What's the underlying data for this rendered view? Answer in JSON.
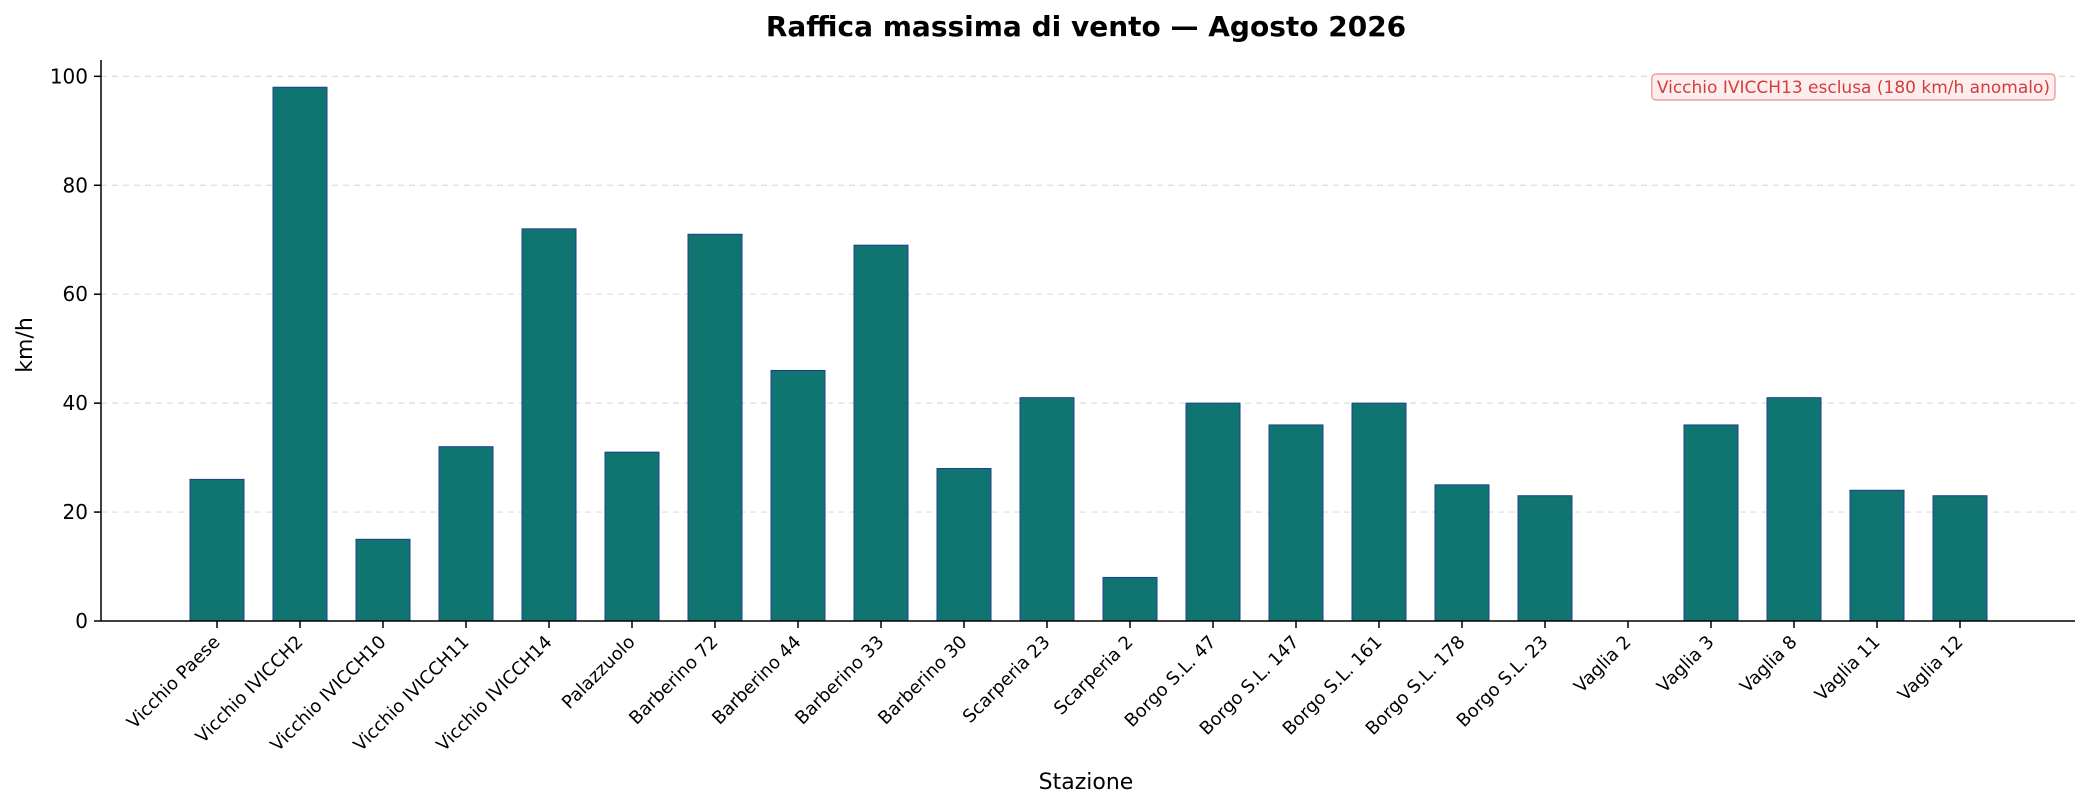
{
  "chart_data": {
    "type": "bar",
    "title": "Raffica massima di vento — Agosto 2026",
    "xlabel": "Stazione",
    "ylabel": "km/h",
    "ylim": [
      0,
      103
    ],
    "yticks": [
      0,
      20,
      40,
      60,
      80,
      100
    ],
    "grid": "horizontal dashed",
    "categories": [
      "Vicchio Paese",
      "Vicchio IVICCH2",
      "Vicchio IVICCH10",
      "Vicchio IVICCH11",
      "Vicchio IVICCH14",
      "Palazzuolo",
      "Barberino 72",
      "Barberino 44",
      "Barberino 33",
      "Barberino 30",
      "Scarperia 23",
      "Scarperia 2",
      "Borgo S.L. 47",
      "Borgo S.L. 147",
      "Borgo S.L. 161",
      "Borgo S.L. 178",
      "Borgo S.L. 23",
      "Vaglia 2",
      "Vaglia 3",
      "Vaglia 8",
      "Vaglia 11",
      "Vaglia 12"
    ],
    "values": [
      26,
      98,
      15,
      32,
      72,
      31,
      71,
      46,
      69,
      28,
      41,
      8,
      40,
      36,
      40,
      25,
      23,
      0,
      36,
      41,
      24,
      23
    ],
    "annotation": "Vicchio IVICCH13 esclusa (180 km/h anomalo)",
    "colors": {
      "bar_fill": "#107570",
      "bar_edge": "#1f3f8f",
      "grid": "#dddddd",
      "annotation_text": "#d43d3d",
      "annotation_border": "#f08c8c",
      "annotation_fill": "#fdeeee"
    }
  }
}
